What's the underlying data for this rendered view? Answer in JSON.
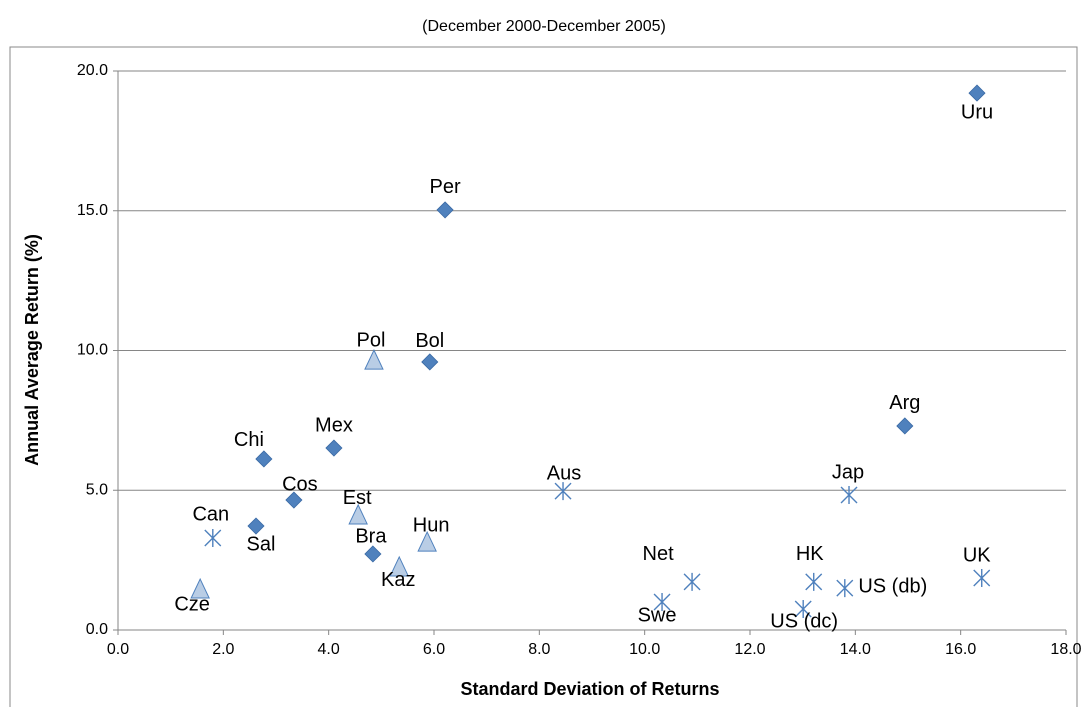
{
  "chart_data": {
    "type": "scatter",
    "subtitle": "(December 2000-December 2005)",
    "x_label": "Standard Deviation of Returns",
    "y_label": "Annual Average Return (%)",
    "xlim": [
      0,
      18
    ],
    "ylim": [
      0,
      20
    ],
    "xticks": [
      {
        "value": 0,
        "label": "0.0"
      },
      {
        "value": 2,
        "label": "2.0"
      },
      {
        "value": 4,
        "label": "4.0"
      },
      {
        "value": 6,
        "label": "6.0"
      },
      {
        "value": 8,
        "label": "8.0"
      },
      {
        "value": 10,
        "label": "10.0"
      },
      {
        "value": 12,
        "label": "12.0"
      },
      {
        "value": 14,
        "label": "14.0"
      },
      {
        "value": 16,
        "label": "16.0"
      },
      {
        "value": 18,
        "label": "18.0"
      }
    ],
    "yticks": [
      {
        "value": 0,
        "label": "0.0"
      },
      {
        "value": 5,
        "label": "5.0"
      },
      {
        "value": 10,
        "label": "10.0"
      },
      {
        "value": 15,
        "label": "15.0"
      },
      {
        "value": 20,
        "label": "20.0"
      }
    ],
    "grid": true,
    "series": [
      {
        "marker": "diamond",
        "color": "#4f81bd",
        "x": [
          16.31,
          6.21,
          5.92,
          14.94,
          4.1,
          2.77,
          3.34,
          2.62,
          4.84
        ],
        "values": [
          19.21,
          15.03,
          9.59,
          7.3,
          6.51,
          6.12,
          4.65,
          3.72,
          2.72
        ],
        "labels": [
          "Uru",
          "Per",
          "Bol",
          "Arg",
          "Mex",
          "Chi",
          "Cos",
          "Sal",
          "Bra"
        ]
      },
      {
        "marker": "triangle",
        "color": "#b9cde5",
        "x": [
          4.86,
          4.56,
          5.87,
          5.34,
          1.56
        ],
        "values": [
          9.62,
          4.08,
          3.11,
          2.22,
          1.43
        ],
        "labels": [
          "Pol",
          "Est",
          "Hun",
          "Kaz",
          "Cze"
        ]
      },
      {
        "marker": "star",
        "color": "#4f81bd",
        "x": [
          8.45,
          13.88,
          1.8,
          10.9,
          10.33,
          13.21,
          13.8,
          13.01,
          16.4
        ],
        "values": [
          4.97,
          4.83,
          3.29,
          1.72,
          1.0,
          1.72,
          1.5,
          0.75,
          1.86
        ],
        "labels": [
          "Aus",
          "Jap",
          "Can",
          "Net",
          "Swe",
          "HK",
          "US (db)",
          "US (dc)",
          "UK"
        ]
      }
    ]
  }
}
